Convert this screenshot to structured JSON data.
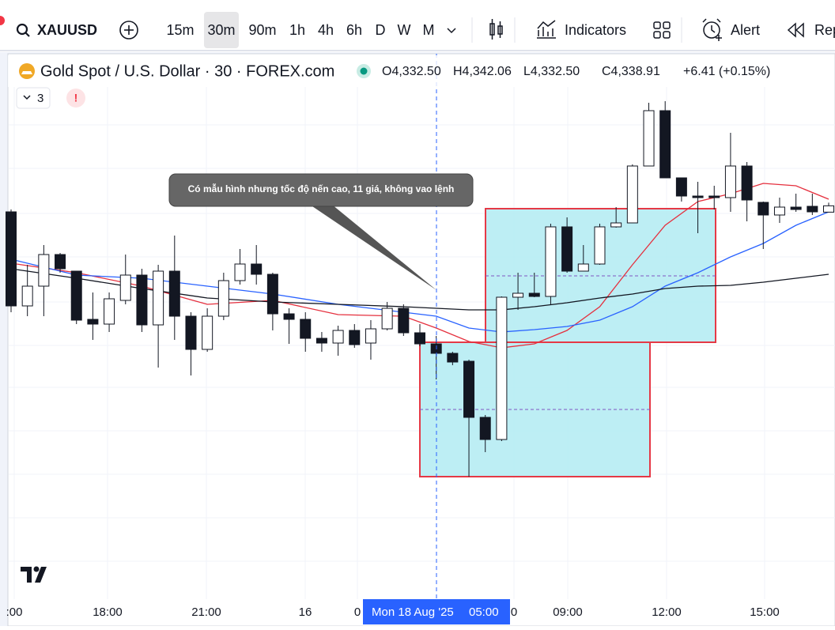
{
  "toolbar": {
    "symbol": "XAUUSD",
    "intervals": [
      "15m",
      "30m",
      "90m",
      "1h",
      "4h",
      "6h",
      "D",
      "W",
      "M"
    ],
    "indicators": "Indicators",
    "alert": "Alert",
    "replay": "Rep"
  },
  "chart_data": {
    "type": "candlestick",
    "title": "Gold Spot / U.S. Dollar · 30 · FOREX.com",
    "legend": [
      "O4,332.50",
      "H4,342.06",
      "L4,332.50",
      "C4,338.91",
      "+6.41 (+0.15%)"
    ],
    "indicator_count": "3",
    "alert_badge": "!",
    "annotation": "Có mẫu hình nhưng tốc độ nến cao, 11 giá, không vao lệnh",
    "x_labels": [
      ":00",
      "18:00",
      "21:00",
      "16",
      "0",
      "0",
      "09:00",
      "12:00",
      "15:00"
    ],
    "crosshair_date": "Mon 18 Aug '25",
    "crosshair_time": "05:00",
    "ylim": [
      3939.2,
      4492.8
    ],
    "candles": {
      "open": [
        4332.8,
        4237.6,
        4257.6,
        4289.6,
        4272.8,
        4224.0,
        4219.2,
        4243.2,
        4268.8,
        4218.4,
        4272.8,
        4227.2,
        4193.6,
        4227.2,
        4263.2,
        4280.0,
        4269.6,
        4229.6,
        4224.0,
        4204.8,
        4200.0,
        4212.8,
        4200.0,
        4214.4,
        4235.2,
        4210.4,
        4199.2,
        4189.6,
        4181.6,
        4124.8,
        4102.4,
        4246.4,
        4250.4,
        4247.2,
        4317.6,
        4272.8,
        4280.0,
        4317.6,
        4321.6,
        4379.2,
        4435.2,
        4367.2,
        4348.8,
        4348.8,
        4347.2,
        4379.2,
        4342.4,
        4329.6,
        4337.6,
        4338.4,
        4332.5
      ],
      "high": [
        4335.2,
        4279.2,
        4299.2,
        4291.2,
        4272.8,
        4251.2,
        4251.2,
        4289.6,
        4275.2,
        4279.2,
        4308.8,
        4231.2,
        4235.2,
        4271.2,
        4295.2,
        4299.2,
        4271.2,
        4235.2,
        4231.2,
        4211.2,
        4217.6,
        4219.2,
        4223.2,
        4241.6,
        4239.2,
        4219.2,
        4207.2,
        4191.2,
        4183.2,
        4127.2,
        4247.2,
        4271.2,
        4271.2,
        4320.8,
        4327.2,
        4299.2,
        4320.8,
        4337.6,
        4380.8,
        4443.2,
        4444.8,
        4367.2,
        4363.2,
        4359.2,
        4412.8,
        4383.2,
        4343.2,
        4347.2,
        4351.2,
        4351.2,
        4342.06
      ],
      "low": [
        4231.2,
        4227.2,
        4227.2,
        4271.2,
        4219.2,
        4203.2,
        4211.2,
        4239.2,
        4211.2,
        4175.2,
        4203.2,
        4167.2,
        4191.2,
        4223.2,
        4259.2,
        4259.2,
        4212.8,
        4199.2,
        4191.2,
        4191.2,
        4187.2,
        4195.2,
        4183.2,
        4212.8,
        4207.2,
        4196.8,
        4163.2,
        4177.6,
        4064.8,
        4089.6,
        4100.8,
        4233.6,
        4246.4,
        4239.2,
        4271.2,
        4272.8,
        4279.2,
        4316.8,
        4321.6,
        4379.2,
        4367.2,
        4343.2,
        4311.2,
        4335.2,
        4332.8,
        4323.2,
        4295.2,
        4321.6,
        4332.8,
        4329.6,
        4332.5
      ],
      "close": [
        4237.6,
        4257.6,
        4289.6,
        4275.2,
        4223.2,
        4219.2,
        4244.8,
        4268.8,
        4218.4,
        4272.8,
        4227.2,
        4193.6,
        4227.2,
        4263.2,
        4280.0,
        4269.6,
        4229.6,
        4224.0,
        4204.8,
        4200.0,
        4212.8,
        4198.4,
        4214.4,
        4235.2,
        4210.4,
        4199.2,
        4189.6,
        4180.8,
        4124.8,
        4102.4,
        4246.4,
        4250.4,
        4247.2,
        4317.6,
        4272.8,
        4280.0,
        4317.6,
        4321.6,
        4379.2,
        4435.2,
        4367.2,
        4348.8,
        4347.2,
        4347.2,
        4379.2,
        4344.8,
        4329.6,
        4337.6,
        4335.2,
        4332.8,
        4338.91
      ]
    },
    "series": [
      {
        "color": "#e5303e",
        "x": [
          0,
          4,
          8,
          12,
          16,
          20,
          24,
          26,
          28,
          30,
          32,
          34,
          36,
          38,
          40,
          42,
          44,
          46,
          48,
          50
        ],
        "values": [
          4280.8,
          4271.2,
          4257.6,
          4239.2,
          4243.2,
          4228.8,
          4227.2,
          4215.2,
          4201.6,
          4195.2,
          4199.2,
          4212.8,
          4236.8,
          4279.2,
          4319.2,
          4343.2,
          4351.2,
          4361.6,
          4359.2,
          4345.6
        ]
      },
      {
        "color": "#2962ff",
        "x": [
          0,
          4,
          8,
          12,
          16,
          20,
          24,
          26,
          28,
          30,
          32,
          34,
          36,
          38,
          40,
          42,
          44,
          46,
          48,
          50
        ],
        "values": [
          4284.8,
          4268.8,
          4265.6,
          4257.6,
          4249.6,
          4239.2,
          4231.2,
          4227.2,
          4215.2,
          4211.2,
          4213.6,
          4216.8,
          4223.2,
          4236.8,
          4257.6,
          4271.2,
          4287.2,
          4300.8,
          4319.2,
          4332.8
        ]
      },
      {
        "color": "#131722",
        "x": [
          0,
          4,
          8,
          12,
          16,
          20,
          24,
          26,
          28,
          30,
          32,
          34,
          36,
          38,
          40,
          42,
          44,
          46,
          48,
          50
        ],
        "values": [
          4275.2,
          4265.6,
          4255.2,
          4245.6,
          4241.6,
          4239.2,
          4236.8,
          4235.2,
          4233.6,
          4233.6,
          4236.8,
          4240.8,
          4245.6,
          4249.6,
          4255.2,
          4257.6,
          4258.4,
          4261.6,
          4265.6,
          4269.6
        ]
      }
    ]
  }
}
